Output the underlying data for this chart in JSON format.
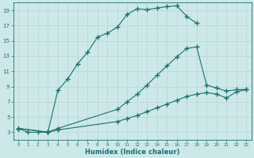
{
  "xlabel": "Humidex (Indice chaleur)",
  "bg_color": "#cce8e8",
  "line_color": "#1a7070",
  "grid_color": "#c0d8d8",
  "xlim": [
    -0.5,
    23.5
  ],
  "ylim": [
    2.0,
    20.0
  ],
  "xticks": [
    0,
    1,
    2,
    3,
    4,
    5,
    6,
    7,
    8,
    9,
    10,
    11,
    12,
    13,
    14,
    15,
    16,
    17,
    18,
    19,
    20,
    21,
    22,
    23
  ],
  "yticks": [
    3,
    5,
    7,
    9,
    11,
    13,
    15,
    17,
    19
  ],
  "curve1_x": [
    0,
    1,
    2,
    3,
    4,
    5,
    6,
    7,
    8,
    9,
    10,
    11,
    12,
    13,
    14,
    15,
    16,
    17,
    18
  ],
  "curve1_y": [
    3.5,
    3.0,
    3.0,
    3.0,
    8.5,
    10.0,
    12.0,
    13.5,
    15.5,
    16.0,
    16.8,
    18.5,
    19.2,
    19.1,
    19.3,
    19.5,
    19.6,
    18.2,
    17.3
  ],
  "curve2_x": [
    0,
    3,
    4,
    10,
    11,
    12,
    13,
    14,
    15,
    16,
    17,
    18,
    19,
    20,
    21,
    22,
    23
  ],
  "curve2_y": [
    3.5,
    3.0,
    3.5,
    6.0,
    7.0,
    8.0,
    9.2,
    10.5,
    11.7,
    12.9,
    14.0,
    14.2,
    9.2,
    8.8,
    8.4,
    8.6,
    8.6
  ],
  "curve3_x": [
    0,
    3,
    4,
    10,
    11,
    12,
    13,
    14,
    15,
    16,
    17,
    18,
    19,
    20,
    21,
    22,
    23
  ],
  "curve3_y": [
    3.5,
    3.0,
    3.3,
    4.4,
    4.8,
    5.2,
    5.7,
    6.2,
    6.7,
    7.2,
    7.7,
    8.0,
    8.2,
    8.0,
    7.5,
    8.3,
    8.6
  ]
}
